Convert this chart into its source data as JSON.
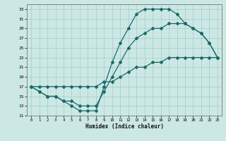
{
  "xlabel": "Humidex (Indice chaleur)",
  "background_color": "#cce8e4",
  "grid_color": "#aacfcb",
  "line_color": "#1a6b6b",
  "xlim": [
    -0.5,
    23.5
  ],
  "ylim": [
    11,
    34
  ],
  "yticks": [
    11,
    13,
    15,
    17,
    19,
    21,
    23,
    25,
    27,
    29,
    31,
    33
  ],
  "xticks": [
    0,
    1,
    2,
    3,
    4,
    5,
    6,
    7,
    8,
    9,
    10,
    11,
    12,
    13,
    14,
    15,
    16,
    17,
    18,
    19,
    20,
    21,
    22,
    23
  ],
  "line1_x": [
    0,
    1,
    2,
    3,
    4,
    5,
    6,
    7,
    8,
    9,
    10,
    11,
    12,
    13,
    14,
    15,
    16,
    17,
    18,
    19,
    20,
    21,
    22,
    23
  ],
  "line1_y": [
    17,
    16,
    15,
    15,
    14,
    13,
    12,
    12,
    12,
    17,
    22,
    26,
    29,
    32,
    33,
    33,
    33,
    33,
    32,
    30,
    29,
    28,
    26,
    23
  ],
  "line2_x": [
    0,
    1,
    2,
    3,
    4,
    5,
    6,
    7,
    8,
    9,
    10,
    11,
    12,
    13,
    14,
    15,
    16,
    17,
    18,
    19,
    20,
    21,
    22,
    23
  ],
  "line2_y": [
    17,
    17,
    17,
    17,
    17,
    17,
    17,
    17,
    17,
    18,
    18,
    19,
    20,
    21,
    21,
    22,
    22,
    23,
    23,
    23,
    23,
    23,
    23,
    23
  ],
  "line3_x": [
    0,
    1,
    2,
    3,
    4,
    5,
    6,
    7,
    8,
    9,
    10,
    11,
    12,
    13,
    14,
    15,
    16,
    17,
    18,
    19,
    20,
    21,
    22,
    23
  ],
  "line3_y": [
    17,
    16,
    15,
    15,
    14,
    14,
    13,
    13,
    13,
    16,
    19,
    22,
    25,
    27,
    28,
    29,
    29,
    30,
    30,
    30,
    29,
    28,
    26,
    23
  ]
}
